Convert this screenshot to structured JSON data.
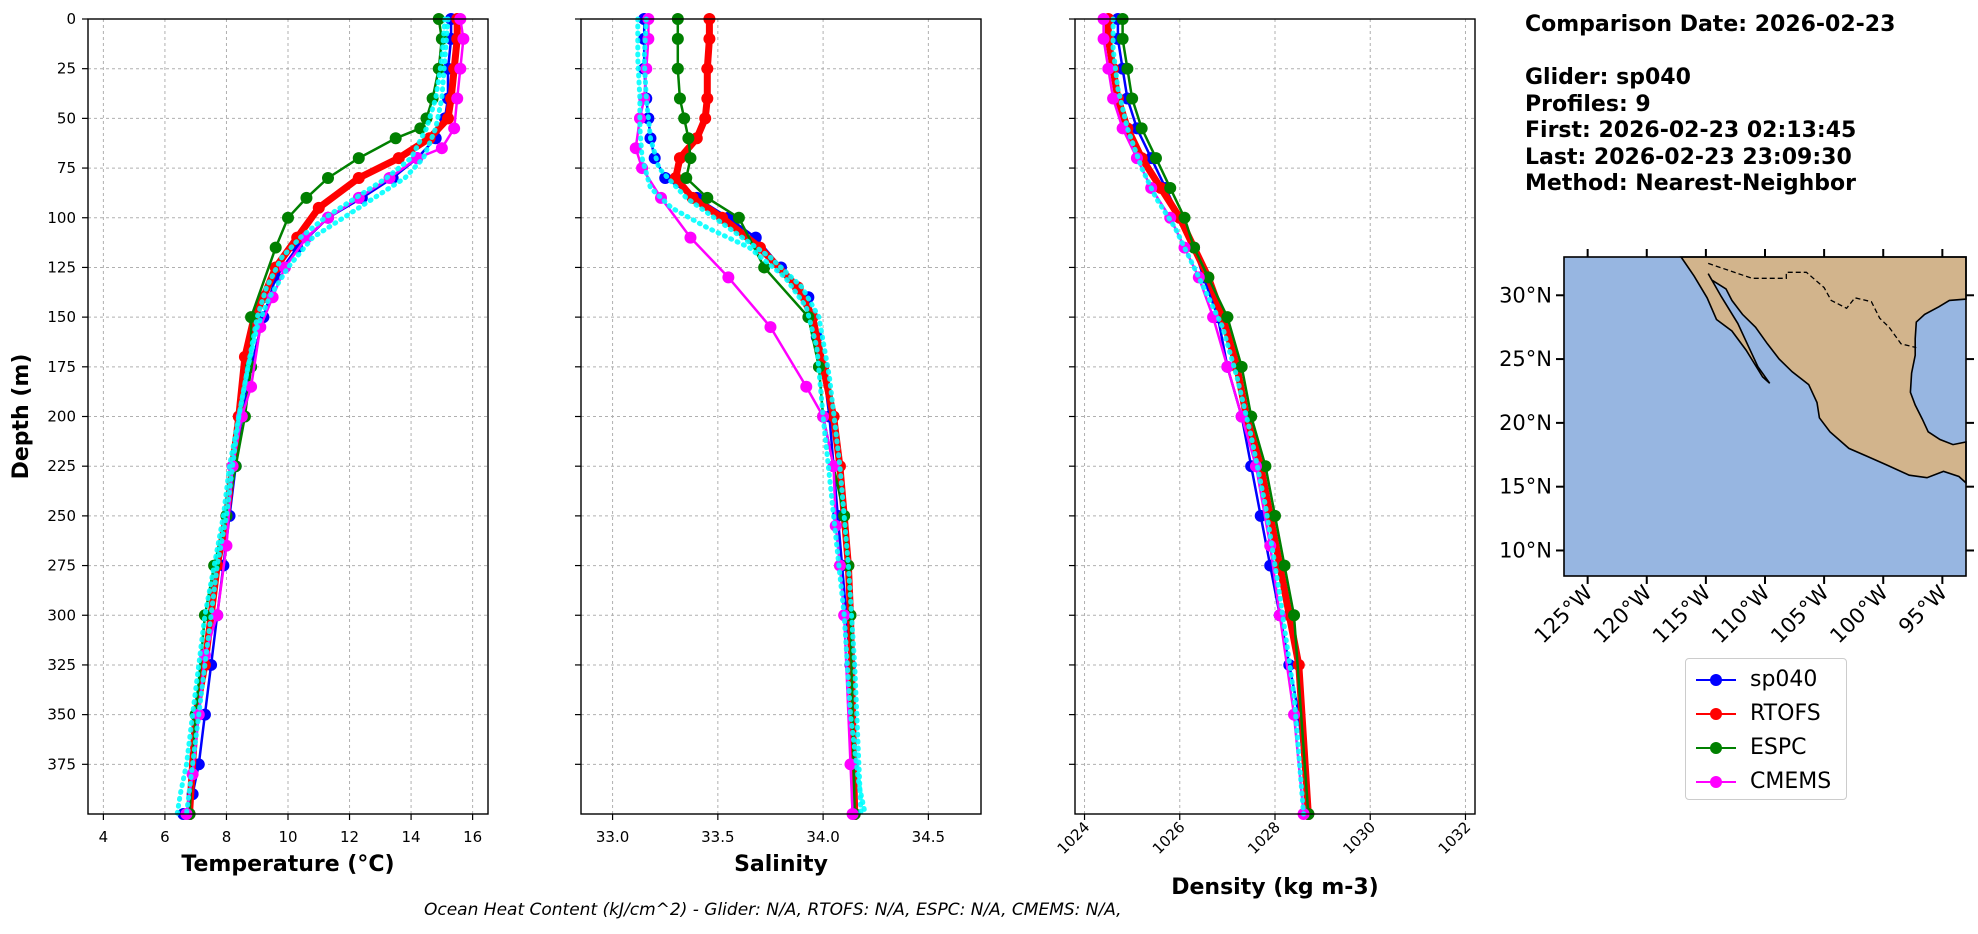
{
  "info": {
    "comparison_date": "Comparison Date: 2026-02-23",
    "glider": "Glider: sp040",
    "profiles": "Profiles: 9",
    "first": "First: 2026-02-23 02:13:45",
    "last": "Last: 2026-02-23 23:09:30",
    "method": "Method: Nearest-Neighbor"
  },
  "footnote": "Ocean Heat Content (kJ/cm^2) - Glider: N/A,  RTOFS: N/A,  ESPC: N/A,  CMEMS: N/A,",
  "legend": [
    {
      "label": "sp040",
      "color": "#0000ff"
    },
    {
      "label": "RTOFS",
      "color": "#ff0000"
    },
    {
      "label": "ESPC",
      "color": "#008000"
    },
    {
      "label": "CMEMS",
      "color": "#ff00ff"
    }
  ],
  "chart_data": [
    {
      "type": "line",
      "xlabel": "Temperature (°C)",
      "ylabel": "Depth (m)",
      "xlim": [
        3.5,
        16.5
      ],
      "ylim": [
        400,
        0
      ],
      "xticks": [
        4,
        6,
        8,
        10,
        12,
        14,
        16
      ],
      "yticks": [
        0,
        25,
        50,
        75,
        100,
        125,
        150,
        175,
        200,
        225,
        250,
        275,
        300,
        325,
        350,
        375
      ],
      "grid": true,
      "series": [
        {
          "name": "sp040",
          "color": "#0000ff",
          "x": [
            15.3,
            15.3,
            15.2,
            15.2,
            15.1,
            14.8,
            14.2,
            13.4,
            12.4,
            11.3,
            10.3,
            9.6,
            9.2,
            8.8,
            8.5,
            8.3,
            8.1,
            7.9,
            7.7,
            7.5,
            7.3,
            7.1,
            6.9,
            6.8,
            6.6
          ],
          "y": [
            0,
            10,
            25,
            40,
            50,
            60,
            70,
            80,
            90,
            100,
            115,
            130,
            150,
            175,
            200,
            225,
            250,
            275,
            300,
            325,
            350,
            375,
            390,
            400,
            400
          ]
        },
        {
          "name": "RTOFS",
          "color": "#ff0000",
          "x": [
            15.5,
            15.5,
            15.4,
            15.3,
            15.2,
            14.6,
            13.6,
            12.3,
            11.0,
            10.3,
            9.6,
            9.2,
            8.9,
            8.6,
            8.4,
            8.2,
            8.0,
            7.7,
            7.5,
            7.3,
            7.0,
            6.8
          ],
          "y": [
            0,
            10,
            25,
            40,
            50,
            60,
            70,
            80,
            95,
            110,
            125,
            140,
            150,
            170,
            200,
            225,
            250,
            275,
            300,
            325,
            350,
            400
          ]
        },
        {
          "name": "ESPC",
          "color": "#008000",
          "x": [
            14.9,
            15.0,
            14.9,
            14.7,
            14.5,
            14.3,
            13.5,
            12.3,
            11.3,
            10.6,
            10.0,
            9.6,
            8.8,
            8.8,
            8.6,
            8.3,
            8.0,
            7.6,
            7.3,
            7.0,
            6.8
          ],
          "y": [
            0,
            10,
            25,
            40,
            50,
            55,
            60,
            70,
            80,
            90,
            100,
            115,
            150,
            175,
            200,
            225,
            250,
            275,
            300,
            350,
            400
          ]
        },
        {
          "name": "CMEMS",
          "color": "#ff00ff",
          "x": [
            15.6,
            15.7,
            15.6,
            15.5,
            15.4,
            15.0,
            14.2,
            13.3,
            12.3,
            11.3,
            10.6,
            9.9,
            9.5,
            9.1,
            8.8,
            8.5,
            8.2,
            8.0,
            7.7,
            7.3,
            7.1,
            6.9,
            6.7
          ],
          "y": [
            0,
            10,
            25,
            40,
            55,
            65,
            70,
            80,
            90,
            100,
            110,
            125,
            140,
            155,
            185,
            200,
            225,
            265,
            300,
            320,
            350,
            380,
            400
          ]
        },
        {
          "name": "",
          "color": "#00ffff",
          "x": [
            15.1,
            15.0,
            14.8,
            14.5,
            14.0,
            13.2,
            12.2,
            11.2,
            10.4,
            9.8,
            9.3,
            9.0,
            8.7,
            8.4,
            8.1,
            7.9,
            7.6,
            7.3,
            7.1,
            6.9,
            6.7,
            6.5,
            6.4
          ],
          "y": [
            0,
            20,
            40,
            55,
            70,
            80,
            90,
            100,
            110,
            120,
            135,
            150,
            175,
            200,
            225,
            250,
            275,
            300,
            325,
            350,
            375,
            390,
            400
          ]
        },
        {
          "name": "",
          "color": "#00ffff",
          "x": [
            15.2,
            15.1,
            15.0,
            14.8,
            14.4,
            13.8,
            12.8,
            11.8,
            10.8,
            10.0,
            9.4,
            9.0,
            8.7,
            8.4,
            8.2,
            8.0,
            7.7,
            7.5,
            7.3,
            7.1,
            6.9,
            6.7
          ],
          "y": [
            0,
            20,
            40,
            55,
            70,
            80,
            90,
            100,
            110,
            125,
            140,
            155,
            175,
            200,
            225,
            250,
            275,
            300,
            325,
            350,
            375,
            400
          ]
        }
      ]
    },
    {
      "type": "line",
      "xlabel": "Salinity",
      "ylabel": "",
      "xlim": [
        32.85,
        34.75
      ],
      "ylim": [
        400,
        0
      ],
      "xticks": [
        33.0,
        33.5,
        34.0,
        34.5
      ],
      "grid": true,
      "series": [
        {
          "name": "sp040",
          "color": "#0000ff",
          "x": [
            33.15,
            33.15,
            33.15,
            33.16,
            33.17,
            33.18,
            33.2,
            33.25,
            33.4,
            33.55,
            33.68,
            33.8,
            33.93,
            33.97,
            34.0,
            34.03,
            34.05,
            34.07,
            34.09,
            34.11,
            34.13,
            34.14,
            34.15
          ],
          "y": [
            0,
            10,
            25,
            40,
            50,
            60,
            70,
            80,
            90,
            100,
            110,
            125,
            140,
            160,
            175,
            200,
            225,
            250,
            275,
            300,
            325,
            375,
            400
          ]
        },
        {
          "name": "RTOFS",
          "color": "#ff0000",
          "x": [
            33.46,
            33.46,
            33.45,
            33.45,
            33.44,
            33.4,
            33.32,
            33.3,
            33.38,
            33.52,
            33.7,
            33.88,
            33.95,
            34.0,
            34.05,
            34.08,
            34.1,
            34.12,
            34.13,
            34.15
          ],
          "y": [
            0,
            10,
            25,
            40,
            50,
            60,
            70,
            80,
            90,
            100,
            115,
            135,
            150,
            175,
            200,
            225,
            250,
            275,
            300,
            400
          ]
        },
        {
          "name": "ESPC",
          "color": "#008000",
          "x": [
            33.31,
            33.31,
            33.31,
            33.32,
            33.34,
            33.36,
            33.37,
            33.35,
            33.45,
            33.6,
            33.72,
            33.93,
            33.98,
            34.0,
            34.05,
            34.1,
            34.12,
            34.13,
            34.15
          ],
          "y": [
            0,
            10,
            25,
            40,
            50,
            60,
            70,
            80,
            90,
            100,
            125,
            150,
            175,
            200,
            225,
            250,
            275,
            300,
            400
          ]
        },
        {
          "name": "CMEMS",
          "color": "#ff00ff",
          "x": [
            33.17,
            33.17,
            33.16,
            33.15,
            33.13,
            33.11,
            33.14,
            33.23,
            33.37,
            33.55,
            33.75,
            33.92,
            34.0,
            34.05,
            34.06,
            34.08,
            34.1,
            34.13,
            34.14
          ],
          "y": [
            0,
            10,
            25,
            40,
            50,
            65,
            75,
            90,
            110,
            130,
            155,
            185,
            200,
            225,
            255,
            275,
            300,
            375,
            400
          ]
        },
        {
          "name": "",
          "color": "#00ffff",
          "x": [
            33.12,
            33.12,
            33.13,
            33.13,
            33.14,
            33.18,
            33.28,
            33.45,
            33.65,
            33.82,
            33.92,
            33.97,
            34.0,
            34.05,
            34.1,
            34.13,
            34.17,
            34.2
          ],
          "y": [
            0,
            20,
            40,
            55,
            70,
            85,
            95,
            105,
            115,
            130,
            145,
            165,
            200,
            250,
            300,
            350,
            385,
            400
          ]
        },
        {
          "name": "",
          "color": "#00ffff",
          "x": [
            33.16,
            33.15,
            33.16,
            33.18,
            33.22,
            33.35,
            33.55,
            33.75,
            33.9,
            33.98,
            34.03,
            34.08,
            34.12,
            34.15,
            34.18
          ],
          "y": [
            0,
            20,
            40,
            60,
            75,
            90,
            105,
            120,
            135,
            150,
            180,
            225,
            275,
            325,
            400
          ]
        }
      ]
    },
    {
      "type": "line",
      "xlabel": "Density (kg m-3)",
      "ylabel": "",
      "xlim": [
        1023.8,
        1032.2
      ],
      "ylim": [
        400,
        0
      ],
      "xticks": [
        1024,
        1026,
        1028,
        1030,
        1032
      ],
      "grid": true,
      "series": [
        {
          "name": "sp040",
          "color": "#0000ff",
          "x": [
            1024.7,
            1024.7,
            1024.8,
            1024.9,
            1025.1,
            1025.4,
            1025.7,
            1026.0,
            1026.3,
            1026.5,
            1026.8,
            1027.0,
            1027.3,
            1027.5,
            1027.7,
            1027.9,
            1028.1,
            1028.3,
            1028.5,
            1028.7
          ],
          "y": [
            0,
            10,
            25,
            40,
            55,
            70,
            85,
            100,
            115,
            130,
            150,
            175,
            200,
            225,
            250,
            275,
            300,
            325,
            350,
            400
          ]
        },
        {
          "name": "RTOFS",
          "color": "#ff0000",
          "x": [
            1024.5,
            1024.5,
            1024.6,
            1024.7,
            1024.9,
            1025.2,
            1025.6,
            1026.0,
            1026.3,
            1026.6,
            1026.9,
            1027.2,
            1027.4,
            1027.7,
            1027.9,
            1028.1,
            1028.3,
            1028.5,
            1028.7
          ],
          "y": [
            0,
            10,
            25,
            40,
            55,
            70,
            85,
            100,
            115,
            130,
            150,
            175,
            200,
            225,
            250,
            275,
            300,
            325,
            400
          ]
        },
        {
          "name": "ESPC",
          "color": "#008000",
          "x": [
            1024.8,
            1024.8,
            1024.9,
            1025.0,
            1025.2,
            1025.5,
            1025.8,
            1026.1,
            1026.3,
            1026.6,
            1027.0,
            1027.3,
            1027.5,
            1027.8,
            1028.0,
            1028.2,
            1028.4,
            1028.7
          ],
          "y": [
            0,
            10,
            25,
            40,
            55,
            70,
            85,
            100,
            115,
            130,
            150,
            175,
            200,
            225,
            250,
            275,
            300,
            400
          ]
        },
        {
          "name": "CMEMS",
          "color": "#ff00ff",
          "x": [
            1024.4,
            1024.4,
            1024.5,
            1024.6,
            1024.8,
            1025.1,
            1025.4,
            1025.8,
            1026.1,
            1026.4,
            1026.7,
            1027.0,
            1027.3,
            1027.6,
            1027.9,
            1028.1,
            1028.4,
            1028.6
          ],
          "y": [
            0,
            10,
            25,
            40,
            55,
            70,
            85,
            100,
            115,
            130,
            150,
            175,
            200,
            225,
            265,
            300,
            350,
            400
          ]
        },
        {
          "name": "",
          "color": "#00ffff",
          "x": [
            1024.6,
            1024.6,
            1024.7,
            1024.9,
            1025.2,
            1025.5,
            1025.9,
            1026.2,
            1026.5,
            1026.9,
            1027.2,
            1027.5,
            1027.8,
            1028.1,
            1028.4,
            1028.6
          ],
          "y": [
            0,
            15,
            35,
            55,
            75,
            90,
            105,
            120,
            135,
            155,
            180,
            210,
            245,
            290,
            340,
            400
          ]
        }
      ]
    }
  ],
  "map": {
    "lat_labels": [
      "30°N",
      "25°N",
      "20°N",
      "15°N",
      "10°N"
    ],
    "lon_labels": [
      "125°W",
      "120°W",
      "115°W",
      "110°W",
      "105°W",
      "100°W",
      "95°W"
    ],
    "ocean_color": "#97b6e1",
    "land_color": "#d2b48c",
    "lat_range": [
      8,
      33
    ],
    "lon_range": [
      -127,
      -93
    ]
  }
}
